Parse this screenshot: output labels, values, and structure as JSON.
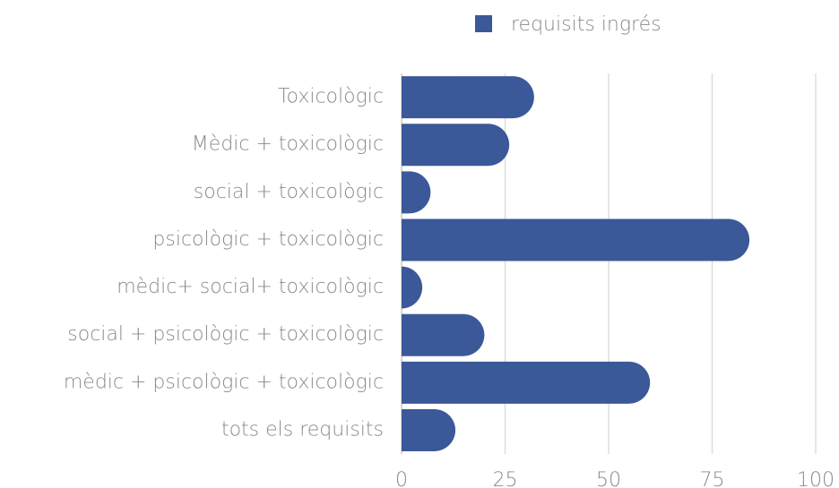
{
  "chart_data": {
    "type": "bar",
    "orientation": "horizontal",
    "categories": [
      "Toxicològic",
      "Mèdic + toxicològic",
      "social + toxicològic",
      "psicològic + toxicològic",
      "mèdic+ social+ toxicològic",
      "social + psicològic + toxicològic",
      "mèdic + psicològic + toxicològic",
      "tots els requisits"
    ],
    "series": [
      {
        "name": "requisits ingrés",
        "color": "#3b5998",
        "values": [
          32,
          26,
          7,
          84,
          5,
          20,
          60,
          13
        ]
      }
    ],
    "xlim": [
      0,
      100
    ],
    "xticks": [
      0,
      25,
      50,
      75,
      100
    ],
    "grid": true,
    "legend": "top"
  }
}
